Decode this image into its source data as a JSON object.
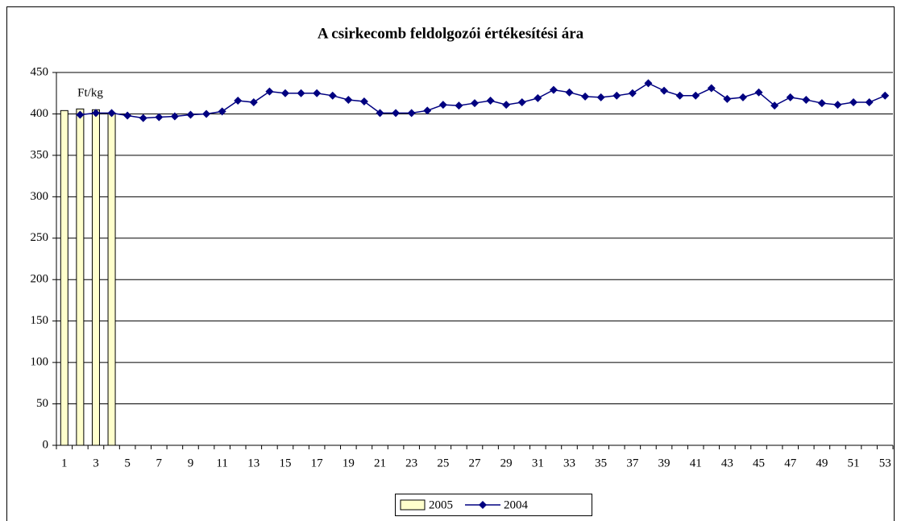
{
  "chart_data": {
    "type": "bar+line",
    "title": "A csirkecomb feldolgozói értékesítési ára",
    "annotation": "Ft/kg",
    "categories": [
      1,
      null,
      3,
      null,
      5,
      null,
      7,
      null,
      9,
      null,
      11,
      null,
      13,
      null,
      15,
      null,
      17,
      null,
      19,
      null,
      21,
      null,
      23,
      null,
      25,
      null,
      27,
      null,
      29,
      null,
      31,
      null,
      33,
      null,
      35,
      null,
      37,
      null,
      39,
      null,
      41,
      null,
      43,
      null,
      45,
      null,
      47,
      null,
      49,
      null,
      51,
      null,
      53
    ],
    "series": [
      {
        "name": "2005",
        "type": "bar",
        "color": "#ffffcc",
        "values": [
          404,
          406,
          405,
          401,
          null,
          null,
          null,
          null,
          null,
          null,
          null,
          null,
          null,
          null,
          null,
          null,
          null,
          null,
          null,
          null,
          null,
          null,
          null,
          null,
          null,
          null,
          null,
          null,
          null,
          null,
          null,
          null,
          null,
          null,
          null,
          null,
          null,
          null,
          null,
          null,
          null,
          null,
          null,
          null,
          null,
          null,
          null,
          null,
          null,
          null,
          null,
          null,
          null
        ]
      },
      {
        "name": "2004",
        "type": "line",
        "color": "#000080",
        "values": [
          null,
          399,
          401,
          401,
          398,
          395,
          396,
          397,
          399,
          400,
          403,
          416,
          414,
          427,
          425,
          425,
          425,
          422,
          417,
          415,
          401,
          401,
          401,
          404,
          411,
          410,
          413,
          416,
          411,
          414,
          419,
          429,
          426,
          421,
          420,
          422,
          425,
          437,
          428,
          422,
          422,
          431,
          418,
          420,
          426,
          410,
          420,
          417,
          413,
          411,
          414,
          414,
          422
        ]
      }
    ],
    "ylim": [
      0,
      450
    ],
    "yticks": [
      0,
      50,
      100,
      150,
      200,
      250,
      300,
      350,
      400,
      450
    ],
    "grid": true,
    "legend": "bottom"
  }
}
